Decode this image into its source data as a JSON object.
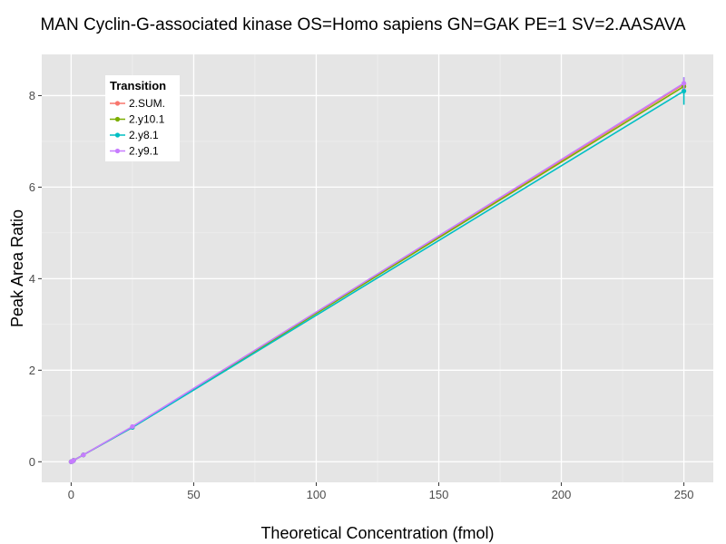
{
  "chart_data": {
    "type": "line",
    "title": "MAN Cyclin-G-associated kinase OS=Homo sapiens GN=GAK PE=1 SV=2.AASAVA",
    "xlabel": "Theoretical Concentration (fmol)",
    "ylabel": "Peak Area Ratio",
    "xlim": [
      -12,
      262
    ],
    "ylim": [
      -0.45,
      8.9
    ],
    "x_ticks": [
      0,
      50,
      100,
      150,
      200,
      250
    ],
    "y_ticks": [
      0,
      2,
      4,
      6,
      8
    ],
    "grid": true,
    "background": "#e5e5e5",
    "legend": {
      "title": "Transition",
      "placement": "top-left"
    },
    "series": [
      {
        "name": "2.SUM.",
        "color": "#f8766d",
        "x": [
          0,
          0.5,
          1,
          5,
          25,
          250
        ],
        "y": [
          0.0,
          0.01,
          0.03,
          0.15,
          0.75,
          8.25
        ],
        "err": [
          0,
          0,
          0,
          0,
          0,
          0.05
        ]
      },
      {
        "name": "2.y10.1",
        "color": "#7cae00",
        "x": [
          0,
          0.5,
          1,
          5,
          25,
          250
        ],
        "y": [
          0.0,
          0.01,
          0.03,
          0.15,
          0.76,
          8.2
        ],
        "err": [
          0,
          0,
          0,
          0,
          0,
          0.05
        ]
      },
      {
        "name": "2.y8.1",
        "color": "#00bfc4",
        "x": [
          0,
          0.5,
          1,
          5,
          25,
          250
        ],
        "y": [
          0.0,
          0.01,
          0.03,
          0.15,
          0.75,
          8.1
        ],
        "err": [
          0,
          0,
          0,
          0,
          0,
          0.3
        ]
      },
      {
        "name": "2.y9.1",
        "color": "#c77cff",
        "x": [
          0,
          0.5,
          1,
          5,
          25,
          250
        ],
        "y": [
          0.0,
          0.01,
          0.03,
          0.15,
          0.77,
          8.27
        ],
        "err": [
          0,
          0,
          0,
          0,
          0,
          0.13
        ]
      }
    ]
  }
}
